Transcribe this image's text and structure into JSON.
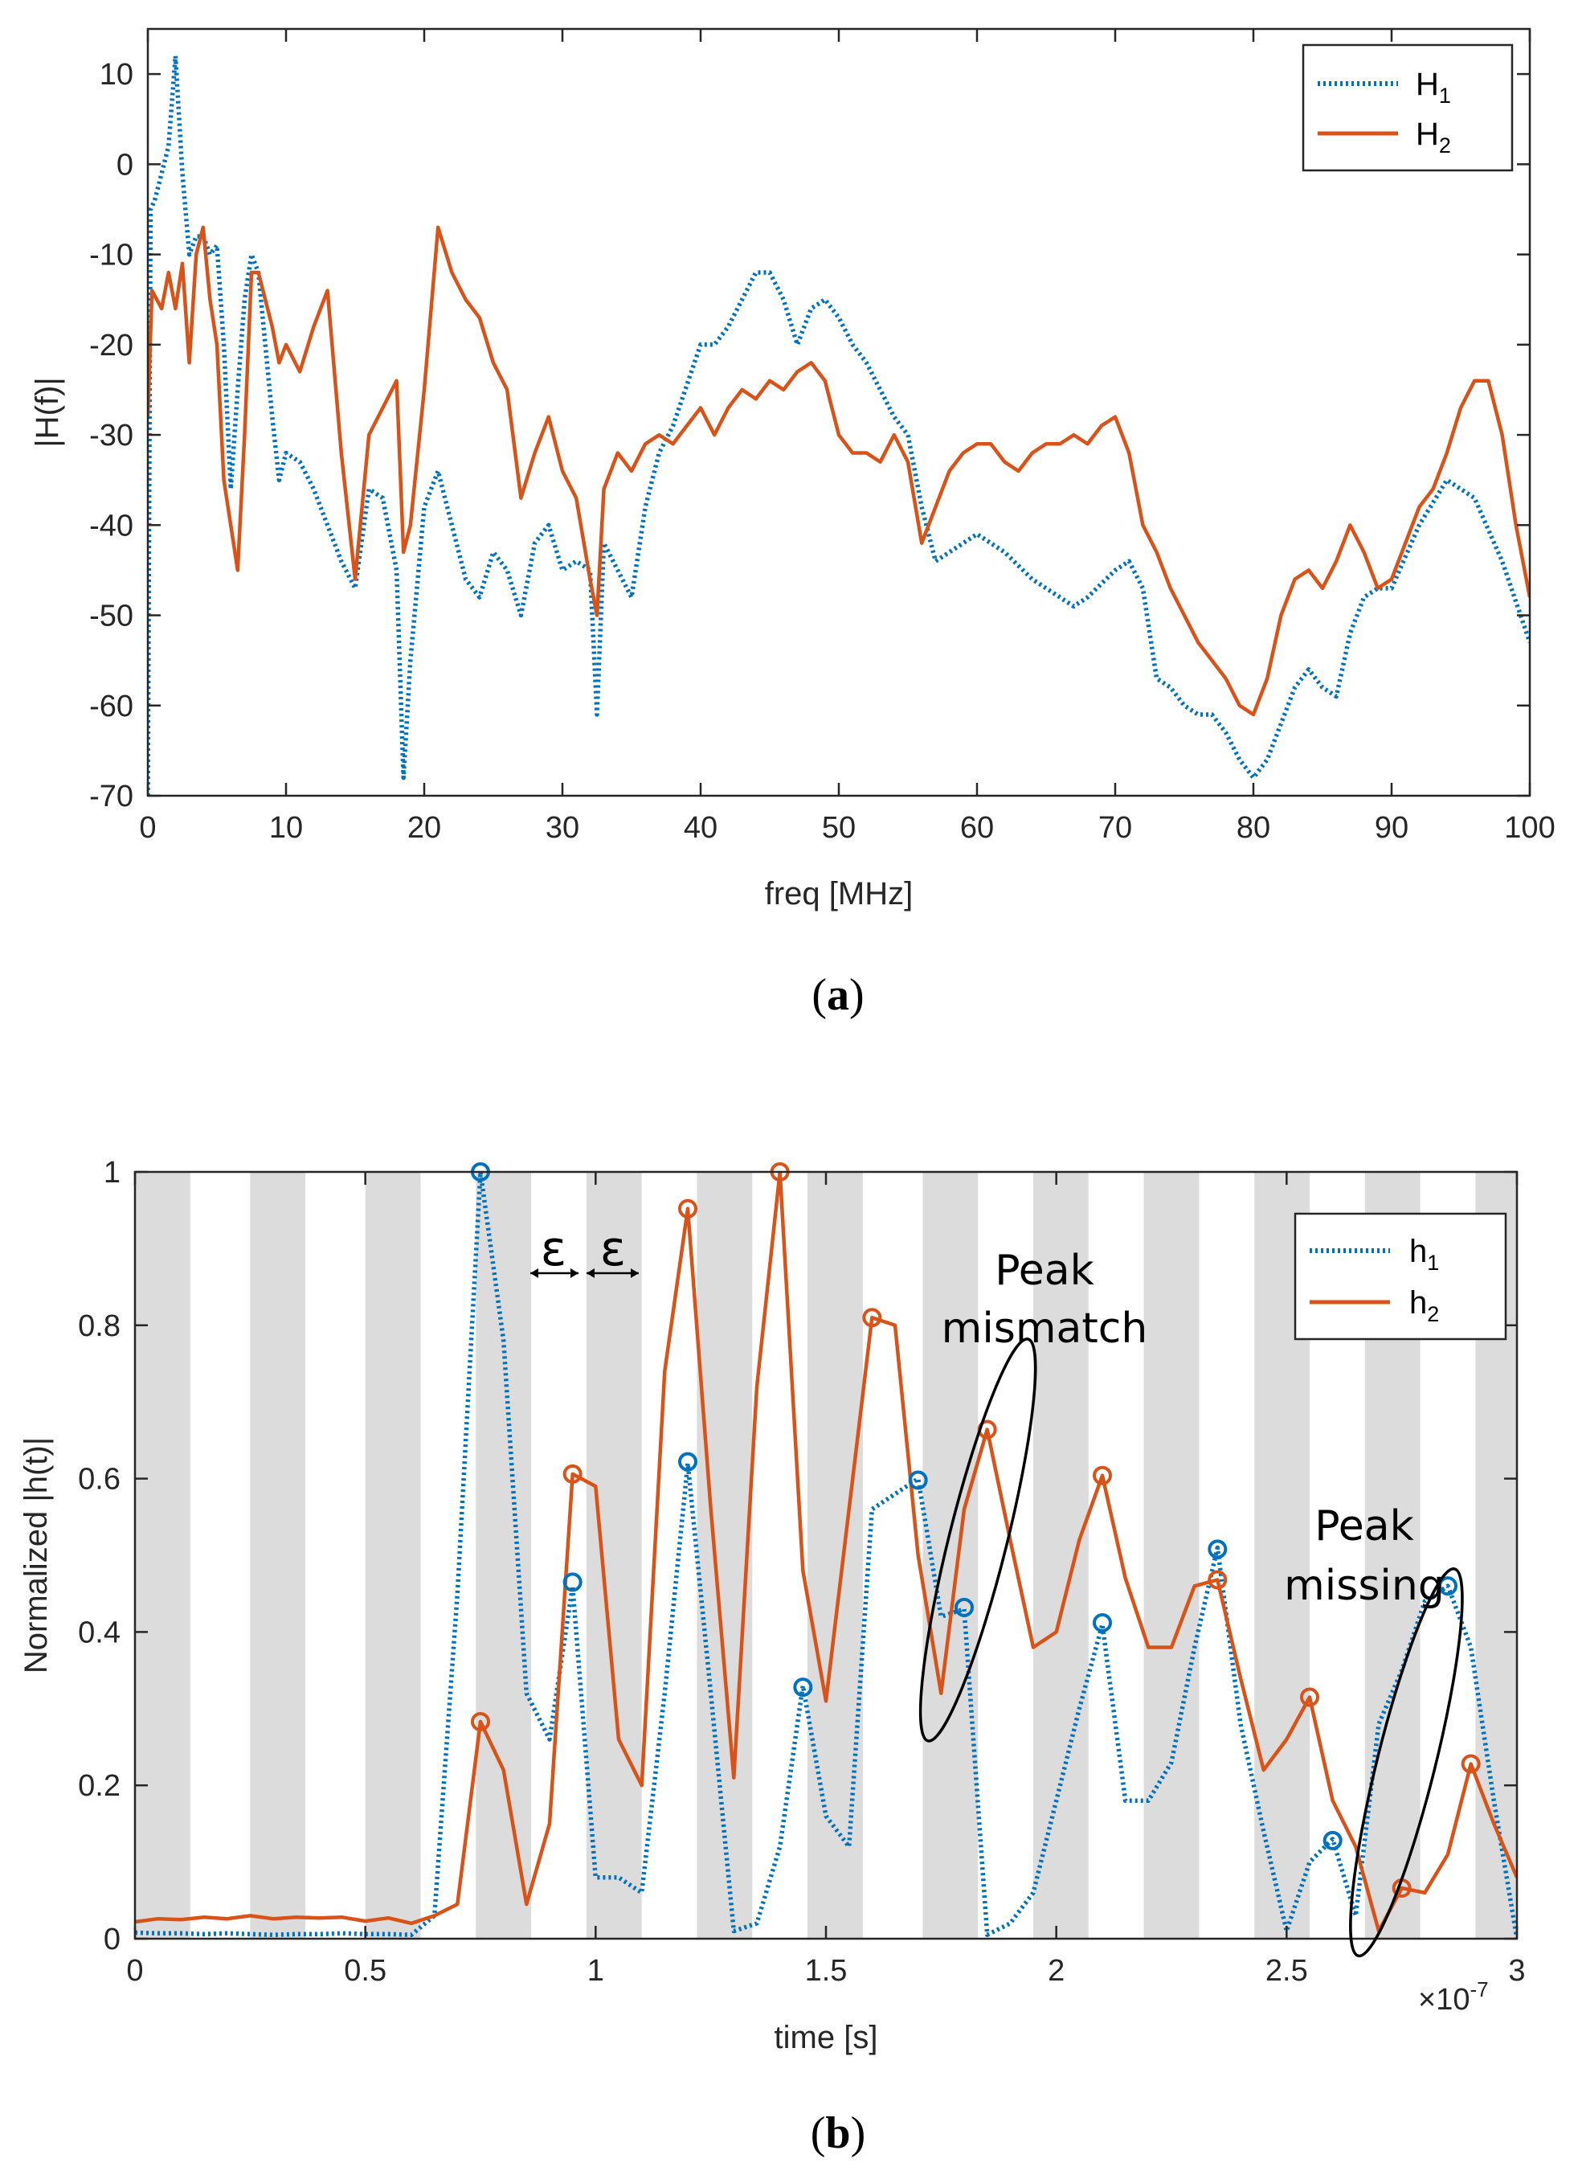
{
  "chart_data": [
    {
      "id": "a",
      "type": "line",
      "caption": "(a)",
      "caption_letter": "a",
      "xlabel": "freq [MHz]",
      "ylabel": "|H(f)|",
      "xlim": [
        0,
        100
      ],
      "ylim": [
        -70,
        15
      ],
      "xticks": [
        0,
        10,
        20,
        30,
        40,
        50,
        60,
        70,
        80,
        90,
        100
      ],
      "yticks": [
        -70,
        -60,
        -50,
        -40,
        -30,
        -20,
        -10,
        0,
        10
      ],
      "legend": [
        "H1",
        "H2"
      ],
      "legend_display": [
        [
          "H",
          "1"
        ],
        [
          "H",
          "2"
        ]
      ],
      "legend_position": "top-right",
      "series": [
        {
          "name": "H1",
          "color": "#0072BD",
          "style": "dotted",
          "x": [
            0,
            0.2,
            0.5,
            1,
            1.5,
            2,
            2.5,
            3,
            3.5,
            4,
            4.5,
            5,
            5.5,
            6,
            6.5,
            7,
            7.5,
            8,
            9,
            9.5,
            10,
            11,
            12,
            13,
            14,
            15,
            16,
            17,
            18,
            18.5,
            19,
            20,
            21,
            22,
            23,
            24,
            25,
            26,
            27,
            28,
            29,
            30,
            31,
            32,
            32.5,
            33,
            34,
            35,
            36,
            37,
            38,
            40,
            41,
            42,
            43,
            44,
            45,
            46,
            47,
            48,
            49,
            50,
            51,
            52,
            53,
            54,
            55,
            56,
            57,
            58,
            59,
            60,
            62,
            64,
            66,
            67,
            68,
            70,
            71,
            72,
            73,
            74,
            75,
            76,
            77,
            78,
            79,
            80,
            81,
            82,
            83,
            84,
            85,
            86,
            87,
            88,
            89,
            90,
            92,
            94,
            96,
            98,
            100
          ],
          "values": [
            -70,
            -5,
            -4,
            -1,
            2,
            12,
            -1,
            -10,
            -8,
            -8,
            -10,
            -9,
            -20,
            -36,
            -25,
            -15,
            -10,
            -12,
            -28,
            -35,
            -32,
            -33,
            -36,
            -40,
            -44,
            -47,
            -36,
            -37,
            -45,
            -68,
            -55,
            -38,
            -34,
            -40,
            -46,
            -48,
            -43,
            -45,
            -50,
            -42,
            -40,
            -45,
            -44,
            -45,
            -61,
            -42,
            -45,
            -48,
            -38,
            -32,
            -29,
            -20,
            -20,
            -18,
            -15,
            -12,
            -12,
            -15,
            -20,
            -16,
            -15,
            -17,
            -20,
            -22,
            -25,
            -28,
            -30,
            -38,
            -44,
            -43,
            -42,
            -41,
            -43,
            -46,
            -48,
            -49,
            -48,
            -45,
            -44,
            -47,
            -57,
            -58,
            -60,
            -61,
            -61,
            -63,
            -66,
            -68,
            -66,
            -62,
            -58,
            -56,
            -58,
            -59,
            -52,
            -48,
            -47,
            -47,
            -40,
            -35,
            -37,
            -44,
            -53
          ]
        },
        {
          "name": "H2",
          "color": "#D95319",
          "style": "solid",
          "x": [
            0,
            0.3,
            1,
            1.5,
            2,
            2.5,
            3,
            3.5,
            4,
            4.5,
            5,
            5.5,
            6,
            6.5,
            7,
            7.5,
            8,
            9,
            9.5,
            10,
            11,
            12,
            13,
            14,
            15,
            16,
            17,
            18,
            18.5,
            19,
            20,
            21,
            22,
            23,
            24,
            25,
            26,
            27,
            28,
            29,
            30,
            31,
            32,
            32.5,
            33,
            34,
            35,
            36,
            37,
            38,
            39,
            40,
            41,
            42,
            43,
            44,
            45,
            46,
            47,
            48,
            49,
            50,
            51,
            52,
            53,
            54,
            55,
            56,
            57,
            58,
            59,
            60,
            61,
            62,
            63,
            64,
            65,
            66,
            67,
            68,
            69,
            70,
            71,
            72,
            73,
            74,
            75,
            76,
            77,
            78,
            79,
            80,
            81,
            82,
            83,
            84,
            85,
            86,
            87,
            88,
            89,
            90,
            91,
            92,
            93,
            94,
            95,
            96,
            97,
            98,
            99,
            100
          ],
          "values": [
            -28,
            -14,
            -16,
            -12,
            -16,
            -11,
            -22,
            -10,
            -7,
            -15,
            -20,
            -35,
            -40,
            -45,
            -30,
            -12,
            -12,
            -18,
            -22,
            -20,
            -23,
            -18,
            -14,
            -32,
            -46,
            -30,
            -27,
            -24,
            -43,
            -40,
            -25,
            -7,
            -12,
            -15,
            -17,
            -22,
            -25,
            -37,
            -32,
            -28,
            -34,
            -37,
            -46,
            -50,
            -36,
            -32,
            -34,
            -31,
            -30,
            -31,
            -29,
            -27,
            -30,
            -27,
            -25,
            -26,
            -24,
            -25,
            -23,
            -22,
            -24,
            -30,
            -32,
            -32,
            -33,
            -30,
            -33,
            -42,
            -38,
            -34,
            -32,
            -31,
            -31,
            -33,
            -34,
            -32,
            -31,
            -31,
            -30,
            -31,
            -29,
            -28,
            -32,
            -40,
            -43,
            -47,
            -50,
            -53,
            -55,
            -57,
            -60,
            -61,
            -57,
            -50,
            -46,
            -45,
            -47,
            -44,
            -40,
            -43,
            -47,
            -46,
            -42,
            -38,
            -36,
            -32,
            -27,
            -24,
            -24,
            -30,
            -40,
            -48
          ]
        }
      ]
    },
    {
      "id": "b",
      "type": "line",
      "caption": "(b)",
      "caption_letter": "b",
      "xlabel": "time [s]",
      "ylabel": "Normalized |h(t)|",
      "xlim": [
        0,
        3
      ],
      "ylim": [
        0,
        1
      ],
      "x_exponent": "×10",
      "x_exponent_power": "-7",
      "xticks": [
        0,
        0.5,
        1,
        1.5,
        2,
        2.5,
        3
      ],
      "yticks": [
        0,
        0.2,
        0.4,
        0.6,
        0.8,
        1
      ],
      "legend": [
        "h1",
        "h2"
      ],
      "legend_display": [
        [
          "h",
          "1"
        ],
        [
          "h",
          "2"
        ]
      ],
      "legend_position": "top-right",
      "shaded_bands": [
        [
          0,
          0.12
        ],
        [
          0.25,
          0.37
        ],
        [
          0.5,
          0.62
        ],
        [
          0.74,
          0.86
        ],
        [
          0.98,
          1.1
        ],
        [
          1.22,
          1.34
        ],
        [
          1.46,
          1.58
        ],
        [
          1.71,
          1.83
        ],
        [
          1.95,
          2.07
        ],
        [
          2.19,
          2.31
        ],
        [
          2.43,
          2.55
        ],
        [
          2.67,
          2.79
        ],
        [
          2.91,
          3.0
        ]
      ],
      "annotations": [
        {
          "text": "ε",
          "x": 0.9
        },
        {
          "text": "ε",
          "x": 1.02
        },
        {
          "text": "Peak",
          "x": 1.92,
          "y": 0.87
        },
        {
          "text": "mismatch",
          "x": 1.92,
          "y": 0.8
        },
        {
          "text": "Peak",
          "x": 2.62,
          "y": 0.57
        },
        {
          "text": "missing",
          "x": 2.62,
          "y": 0.5
        }
      ],
      "ellipses": [
        {
          "cx": 1.83,
          "cy": 0.52,
          "rx": 0.14,
          "ry": 0.27,
          "label": "Peak mismatch"
        },
        {
          "cx": 2.76,
          "cy": 0.23,
          "rx": 0.14,
          "ry": 0.26,
          "label": "Peak missing"
        }
      ],
      "series": [
        {
          "name": "h1",
          "color": "#0072BD",
          "style": "dotted",
          "x": [
            0,
            0.05,
            0.1,
            0.15,
            0.2,
            0.25,
            0.3,
            0.35,
            0.4,
            0.45,
            0.5,
            0.55,
            0.6,
            0.65,
            0.7,
            0.75,
            0.8,
            0.85,
            0.9,
            0.95,
            1.0,
            1.05,
            1.1,
            1.15,
            1.2,
            1.25,
            1.3,
            1.35,
            1.4,
            1.45,
            1.5,
            1.55,
            1.6,
            1.65,
            1.7,
            1.75,
            1.8,
            1.85,
            1.9,
            1.95,
            2.0,
            2.05,
            2.1,
            2.15,
            2.2,
            2.25,
            2.3,
            2.35,
            2.4,
            2.45,
            2.5,
            2.55,
            2.6,
            2.65,
            2.7,
            2.75,
            2.8,
            2.85,
            2.9,
            2.95,
            3.0
          ],
          "values": [
            0.008,
            0.007,
            0.007,
            0.006,
            0.007,
            0.006,
            0.005,
            0.006,
            0.006,
            0.007,
            0.006,
            0.006,
            0.005,
            0.03,
            0.45,
            1.0,
            0.78,
            0.32,
            0.26,
            0.46,
            0.08,
            0.08,
            0.06,
            0.32,
            0.62,
            0.32,
            0.01,
            0.02,
            0.12,
            0.33,
            0.16,
            0.12,
            0.56,
            0.58,
            0.6,
            0.42,
            0.43,
            0.005,
            0.02,
            0.06,
            0.18,
            0.3,
            0.41,
            0.18,
            0.18,
            0.23,
            0.38,
            0.51,
            0.28,
            0.14,
            0.01,
            0.1,
            0.13,
            0.03,
            0.28,
            0.35,
            0.44,
            0.46,
            0.38,
            0.18,
            0.0
          ],
          "peaks": [
            [
              0.75,
              1.0
            ],
            [
              0.95,
              0.465
            ],
            [
              1.2,
              0.622
            ],
            [
              1.45,
              0.328
            ],
            [
              1.7,
              0.598
            ],
            [
              1.8,
              0.432
            ],
            [
              2.1,
              0.412
            ],
            [
              2.35,
              0.508
            ],
            [
              2.6,
              0.128
            ],
            [
              2.85,
              0.46
            ]
          ]
        },
        {
          "name": "h2",
          "color": "#D95319",
          "style": "solid",
          "x": [
            0,
            0.05,
            0.1,
            0.15,
            0.2,
            0.25,
            0.3,
            0.35,
            0.4,
            0.45,
            0.5,
            0.55,
            0.6,
            0.65,
            0.7,
            0.75,
            0.8,
            0.85,
            0.9,
            0.95,
            1.0,
            1.05,
            1.1,
            1.15,
            1.2,
            1.25,
            1.3,
            1.35,
            1.4,
            1.45,
            1.5,
            1.55,
            1.6,
            1.65,
            1.7,
            1.75,
            1.8,
            1.85,
            1.9,
            1.95,
            2.0,
            2.05,
            2.1,
            2.15,
            2.2,
            2.25,
            2.3,
            2.35,
            2.4,
            2.45,
            2.5,
            2.55,
            2.6,
            2.65,
            2.7,
            2.75,
            2.8,
            2.85,
            2.9,
            2.95,
            3.0
          ],
          "values": [
            0.022,
            0.026,
            0.025,
            0.028,
            0.026,
            0.03,
            0.026,
            0.028,
            0.027,
            0.028,
            0.023,
            0.027,
            0.02,
            0.03,
            0.045,
            0.283,
            0.22,
            0.045,
            0.15,
            0.606,
            0.59,
            0.26,
            0.2,
            0.74,
            0.952,
            0.56,
            0.21,
            0.72,
            1.0,
            0.48,
            0.31,
            0.56,
            0.81,
            0.8,
            0.5,
            0.32,
            0.56,
            0.664,
            0.52,
            0.38,
            0.4,
            0.52,
            0.604,
            0.47,
            0.38,
            0.38,
            0.46,
            0.468,
            0.34,
            0.22,
            0.26,
            0.315,
            0.18,
            0.12,
            0.01,
            0.066,
            0.06,
            0.11,
            0.228,
            0.15,
            0.08
          ],
          "peaks": [
            [
              0.75,
              0.283
            ],
            [
              0.95,
              0.606
            ],
            [
              1.2,
              0.952
            ],
            [
              1.4,
              1.0
            ],
            [
              1.6,
              0.81
            ],
            [
              1.85,
              0.664
            ],
            [
              2.1,
              0.604
            ],
            [
              2.35,
              0.468
            ],
            [
              2.55,
              0.315
            ],
            [
              2.75,
              0.066
            ],
            [
              2.9,
              0.228
            ]
          ]
        }
      ]
    }
  ]
}
